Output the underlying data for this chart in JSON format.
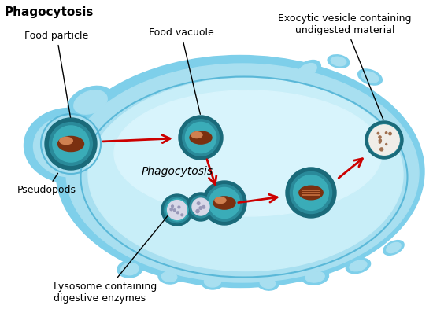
{
  "title": "Phagocytosis",
  "background_color": "#ffffff",
  "cell_outer_color": "#7ecfea",
  "cell_mid_color": "#a8dff0",
  "cell_inner_color": "#c8eef8",
  "cell_highlight_color": "#d8f4fc",
  "cell_border_color": "#5ab8d8",
  "labels": {
    "food_particle": "Food particle",
    "food_vacuole": "Food vacuole",
    "exocytic": "Exocytic vesicle containing\nundigested material",
    "pseudopods": "Pseudopods",
    "phagocytosis": "Phagocytosis",
    "lysosome": "Lysosome containing\ndigestive enzymes"
  },
  "vesicle_ring1": "#1a6a7a",
  "vesicle_ring2": "#2a8a9a",
  "vesicle_inner": "#3aacb8",
  "food_dark": "#7a3010",
  "food_mid": "#a85020",
  "food_light": "#d08050",
  "lyso_color": "#d8d8e8",
  "lyso_dot": "#9898b8",
  "exo_dot": "#c0905050",
  "arrow_color": "#cc0000",
  "label_color": "#000000",
  "title_color": "#000000",
  "line_color": "#000000"
}
